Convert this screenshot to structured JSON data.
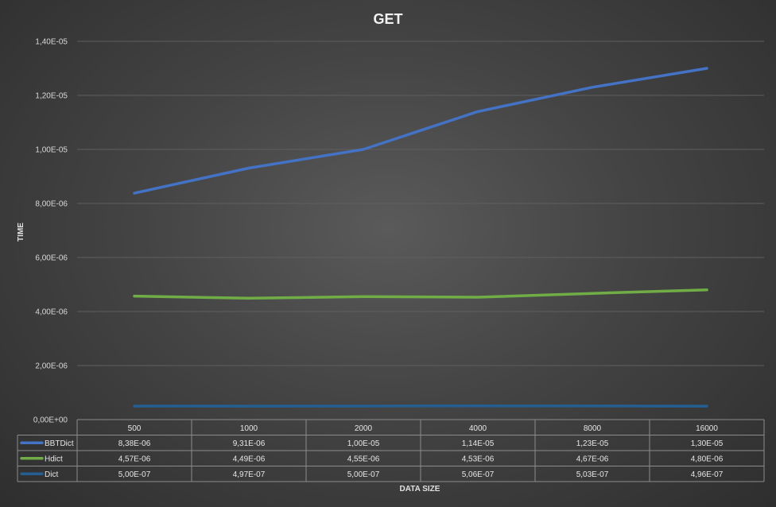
{
  "chart_data": {
    "type": "line",
    "title": "GET",
    "xlabel": "DATA SIZE",
    "ylabel": "TIME",
    "categories": [
      "500",
      "1000",
      "2000",
      "4000",
      "8000",
      "16000"
    ],
    "ylim": [
      0,
      1.4e-05
    ],
    "y_ticks": [
      "0,00E+00",
      "2,00E-06",
      "4,00E-06",
      "6,00E-06",
      "8,00E-06",
      "1,00E-05",
      "1,20E-05",
      "1,40E-05"
    ],
    "grid": true,
    "legend": "data-table",
    "series": [
      {
        "name": "BBTDict",
        "color": "#4472c4",
        "values": [
          8.38e-06,
          9.31e-06,
          1e-05,
          1.14e-05,
          1.23e-05,
          1.3e-05
        ],
        "labels": [
          "8,38E-06",
          "9,31E-06",
          "1,00E-05",
          "1,14E-05",
          "1,23E-05",
          "1,30E-05"
        ]
      },
      {
        "name": "Hdict",
        "color": "#70ad47",
        "values": [
          4.57e-06,
          4.49e-06,
          4.55e-06,
          4.53e-06,
          4.67e-06,
          4.8e-06
        ],
        "labels": [
          "4,57E-06",
          "4,49E-06",
          "4,55E-06",
          "4,53E-06",
          "4,67E-06",
          "4,80E-06"
        ]
      },
      {
        "name": "Dict",
        "color": "#255e91",
        "values": [
          5e-07,
          4.97e-07,
          5e-07,
          5.06e-07,
          5.03e-07,
          4.96e-07
        ],
        "labels": [
          "5,00E-07",
          "4,97E-07",
          "5,00E-07",
          "5,06E-07",
          "5,03E-07",
          "4,96E-07"
        ]
      }
    ]
  }
}
